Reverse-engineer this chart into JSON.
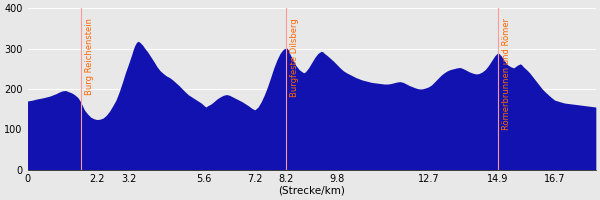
{
  "xlabel": "(Strecke/km)",
  "xlim": [
    0,
    18.0
  ],
  "ylim": [
    0,
    400
  ],
  "yticks": [
    0,
    100,
    200,
    300,
    400
  ],
  "xticks": [
    0,
    2.2,
    3.2,
    5.6,
    7.2,
    8.2,
    9.8,
    12.7,
    14.9,
    16.7
  ],
  "fill_color": "#1212b0",
  "bg_color": "#e8e8e8",
  "annotation_color": "#ff6600",
  "annotation_line_color": "#ff9999",
  "annotations": [
    {
      "x": 1.7,
      "label": "Burg Reichenstein"
    },
    {
      "x": 8.2,
      "label": "Burgfeste Dilsberg"
    },
    {
      "x": 14.9,
      "label": "Römerbrunnen und Römer"
    }
  ],
  "profile": [
    [
      0.0,
      170
    ],
    [
      0.15,
      172
    ],
    [
      0.3,
      175
    ],
    [
      0.5,
      178
    ],
    [
      0.7,
      182
    ],
    [
      0.9,
      188
    ],
    [
      1.0,
      192
    ],
    [
      1.1,
      195
    ],
    [
      1.2,
      196
    ],
    [
      1.3,
      193
    ],
    [
      1.4,
      190
    ],
    [
      1.5,
      185
    ],
    [
      1.6,
      178
    ],
    [
      1.65,
      172
    ],
    [
      1.7,
      165
    ],
    [
      1.8,
      148
    ],
    [
      1.9,
      138
    ],
    [
      2.0,
      130
    ],
    [
      2.1,
      126
    ],
    [
      2.2,
      124
    ],
    [
      2.3,
      125
    ],
    [
      2.4,
      128
    ],
    [
      2.5,
      135
    ],
    [
      2.6,
      145
    ],
    [
      2.7,
      158
    ],
    [
      2.8,
      172
    ],
    [
      2.9,
      192
    ],
    [
      3.0,
      215
    ],
    [
      3.1,
      240
    ],
    [
      3.2,
      262
    ],
    [
      3.3,
      285
    ],
    [
      3.35,
      298
    ],
    [
      3.4,
      308
    ],
    [
      3.45,
      315
    ],
    [
      3.5,
      318
    ],
    [
      3.55,
      316
    ],
    [
      3.6,
      312
    ],
    [
      3.65,
      308
    ],
    [
      3.7,
      302
    ],
    [
      3.8,
      292
    ],
    [
      3.9,
      280
    ],
    [
      4.0,
      268
    ],
    [
      4.1,
      255
    ],
    [
      4.2,
      245
    ],
    [
      4.3,
      238
    ],
    [
      4.4,
      232
    ],
    [
      4.5,
      228
    ],
    [
      4.6,
      222
    ],
    [
      4.7,
      215
    ],
    [
      4.8,
      208
    ],
    [
      4.9,
      200
    ],
    [
      5.0,
      192
    ],
    [
      5.1,
      185
    ],
    [
      5.2,
      180
    ],
    [
      5.3,
      175
    ],
    [
      5.4,
      170
    ],
    [
      5.5,
      165
    ],
    [
      5.6,
      158
    ],
    [
      5.65,
      155
    ],
    [
      5.7,
      158
    ],
    [
      5.8,
      162
    ],
    [
      5.9,
      168
    ],
    [
      6.0,
      175
    ],
    [
      6.1,
      180
    ],
    [
      6.2,
      184
    ],
    [
      6.3,
      186
    ],
    [
      6.4,
      184
    ],
    [
      6.5,
      180
    ],
    [
      6.6,
      176
    ],
    [
      6.7,
      172
    ],
    [
      6.8,
      168
    ],
    [
      6.9,
      163
    ],
    [
      7.0,
      158
    ],
    [
      7.1,
      152
    ],
    [
      7.2,
      148
    ],
    [
      7.3,
      155
    ],
    [
      7.4,
      168
    ],
    [
      7.5,
      185
    ],
    [
      7.6,
      205
    ],
    [
      7.7,
      228
    ],
    [
      7.8,
      252
    ],
    [
      7.9,
      272
    ],
    [
      8.0,
      288
    ],
    [
      8.1,
      298
    ],
    [
      8.2,
      302
    ],
    [
      8.25,
      298
    ],
    [
      8.3,
      288
    ],
    [
      8.4,
      272
    ],
    [
      8.5,
      258
    ],
    [
      8.6,
      248
    ],
    [
      8.7,
      242
    ],
    [
      8.75,
      240
    ],
    [
      8.8,
      242
    ],
    [
      8.9,
      252
    ],
    [
      9.0,
      265
    ],
    [
      9.1,
      278
    ],
    [
      9.2,
      288
    ],
    [
      9.3,
      293
    ],
    [
      9.35,
      292
    ],
    [
      9.4,
      288
    ],
    [
      9.5,
      282
    ],
    [
      9.6,
      275
    ],
    [
      9.7,
      268
    ],
    [
      9.8,
      260
    ],
    [
      9.9,
      252
    ],
    [
      10.0,
      245
    ],
    [
      10.1,
      240
    ],
    [
      10.2,
      236
    ],
    [
      10.3,
      232
    ],
    [
      10.4,
      228
    ],
    [
      10.5,
      225
    ],
    [
      10.6,
      222
    ],
    [
      10.7,
      220
    ],
    [
      10.8,
      218
    ],
    [
      10.9,
      216
    ],
    [
      11.0,
      215
    ],
    [
      11.1,
      214
    ],
    [
      11.2,
      213
    ],
    [
      11.3,
      212
    ],
    [
      11.4,
      212
    ],
    [
      11.5,
      213
    ],
    [
      11.6,
      215
    ],
    [
      11.7,
      217
    ],
    [
      11.8,
      218
    ],
    [
      11.9,
      216
    ],
    [
      12.0,
      212
    ],
    [
      12.1,
      208
    ],
    [
      12.2,
      205
    ],
    [
      12.3,
      202
    ],
    [
      12.4,
      200
    ],
    [
      12.5,
      200
    ],
    [
      12.6,
      202
    ],
    [
      12.7,
      205
    ],
    [
      12.8,
      210
    ],
    [
      12.9,
      218
    ],
    [
      13.0,
      226
    ],
    [
      13.1,
      234
    ],
    [
      13.2,
      240
    ],
    [
      13.3,
      245
    ],
    [
      13.4,
      248
    ],
    [
      13.5,
      250
    ],
    [
      13.6,
      252
    ],
    [
      13.7,
      253
    ],
    [
      13.8,
      250
    ],
    [
      13.9,
      246
    ],
    [
      14.0,
      242
    ],
    [
      14.1,
      239
    ],
    [
      14.2,
      237
    ],
    [
      14.3,
      238
    ],
    [
      14.4,
      242
    ],
    [
      14.5,
      248
    ],
    [
      14.6,
      258
    ],
    [
      14.7,
      270
    ],
    [
      14.8,
      282
    ],
    [
      14.9,
      290
    ],
    [
      15.0,
      282
    ],
    [
      15.1,
      270
    ],
    [
      15.2,
      260
    ],
    [
      15.3,
      255
    ],
    [
      15.4,
      252
    ],
    [
      15.5,
      258
    ],
    [
      15.6,
      262
    ],
    [
      15.65,
      260
    ],
    [
      15.7,
      255
    ],
    [
      15.8,
      248
    ],
    [
      15.9,
      240
    ],
    [
      16.0,
      230
    ],
    [
      16.1,
      220
    ],
    [
      16.2,
      210
    ],
    [
      16.3,
      200
    ],
    [
      16.4,
      192
    ],
    [
      16.5,
      185
    ],
    [
      16.6,
      178
    ],
    [
      16.7,
      172
    ],
    [
      17.0,
      165
    ],
    [
      17.5,
      160
    ],
    [
      18.0,
      155
    ]
  ]
}
